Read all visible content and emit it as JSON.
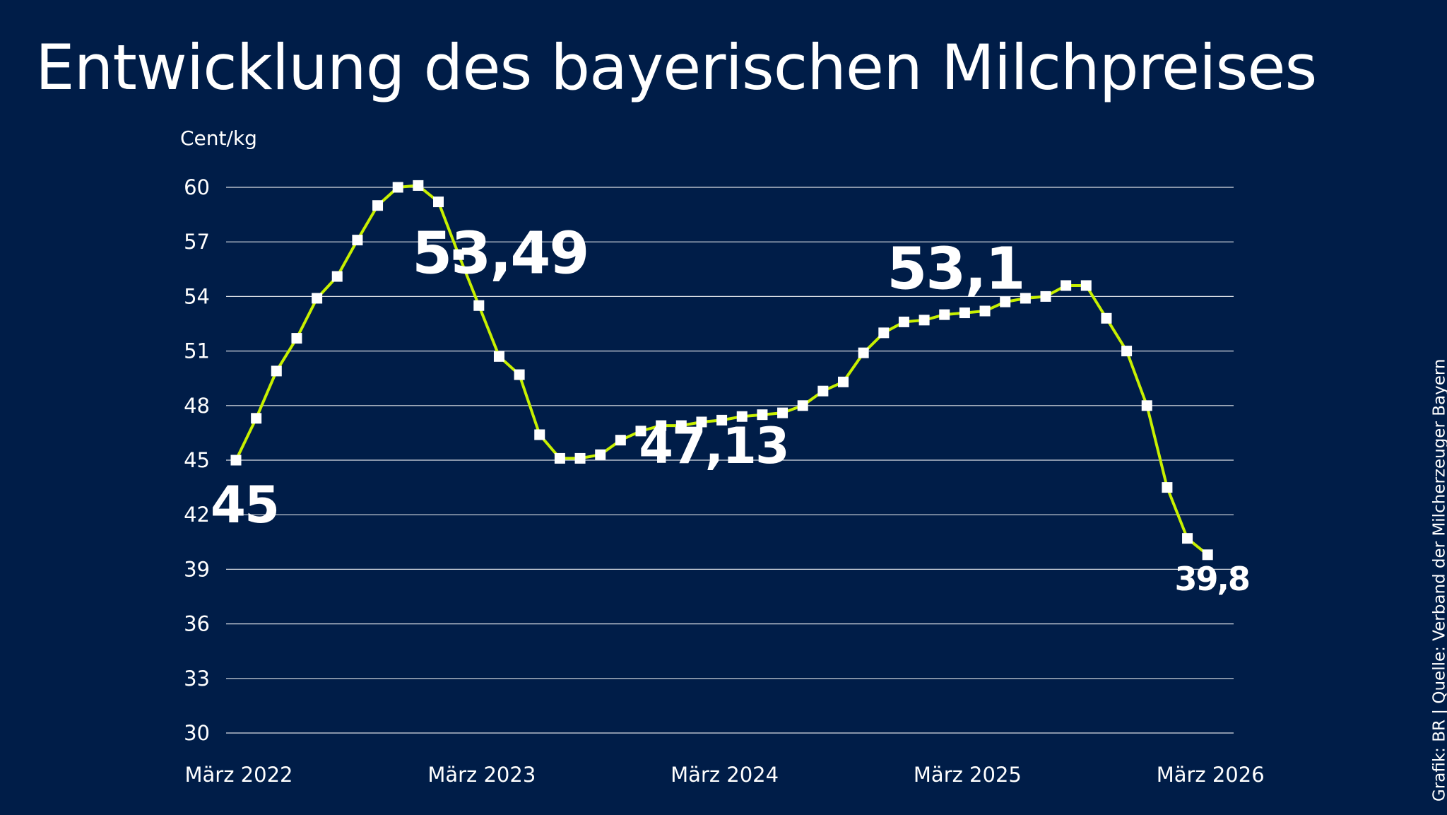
{
  "title": "Entwicklung des bayerischen Milchpreises",
  "source": "Grafik: BR | Quelle: Verband der Milcherzeuger Bayern",
  "colors": {
    "background": "#001d48",
    "line": "#c8f000",
    "grid": "#ffffff",
    "marker": "#ffffff",
    "text": "#ffffff"
  },
  "chart_data": {
    "type": "line",
    "title": "Entwicklung des bayerischen Milchpreises",
    "ylabel": "Cent/kg",
    "xlabel": "",
    "ylim": [
      30,
      60
    ],
    "yticks": [
      60,
      57,
      54,
      51,
      48,
      45,
      42,
      39,
      36,
      33,
      30
    ],
    "ytick_labels": [
      "60",
      "57",
      "54",
      "51",
      "48",
      "45",
      "42",
      "39",
      "36",
      "33",
      "30"
    ],
    "xtick_labels": [
      "März 2022",
      "März 2023",
      "März 2024",
      "März 2025",
      "März 2026"
    ],
    "xtick_indices": [
      0,
      12,
      24,
      36,
      48
    ],
    "grid": true,
    "legend": "none",
    "series": [
      {
        "values": [
          45.0,
          47.3,
          49.9,
          51.7,
          53.9,
          55.1,
          57.1,
          59.0,
          60.0,
          60.1,
          59.2,
          56.3,
          53.5,
          50.7,
          49.7,
          46.4,
          45.1,
          45.1,
          45.3,
          46.1,
          46.6,
          46.9,
          46.9,
          47.1,
          47.2,
          47.4,
          47.5,
          47.6,
          48.0,
          48.8,
          49.3,
          50.9,
          52.0,
          52.6,
          52.7,
          53.0,
          53.1,
          53.2,
          53.7,
          53.9,
          54.0,
          54.6,
          54.6,
          52.8,
          51.0,
          48.0,
          43.5,
          40.7,
          39.8
        ]
      }
    ],
    "annotations": [
      {
        "label": "45",
        "index": 0
      },
      {
        "label": "53,49",
        "index": 12
      },
      {
        "label": "47,13",
        "index": 23
      },
      {
        "label": "53,1",
        "index": 36
      },
      {
        "label": "39,8",
        "index": 48
      }
    ]
  }
}
